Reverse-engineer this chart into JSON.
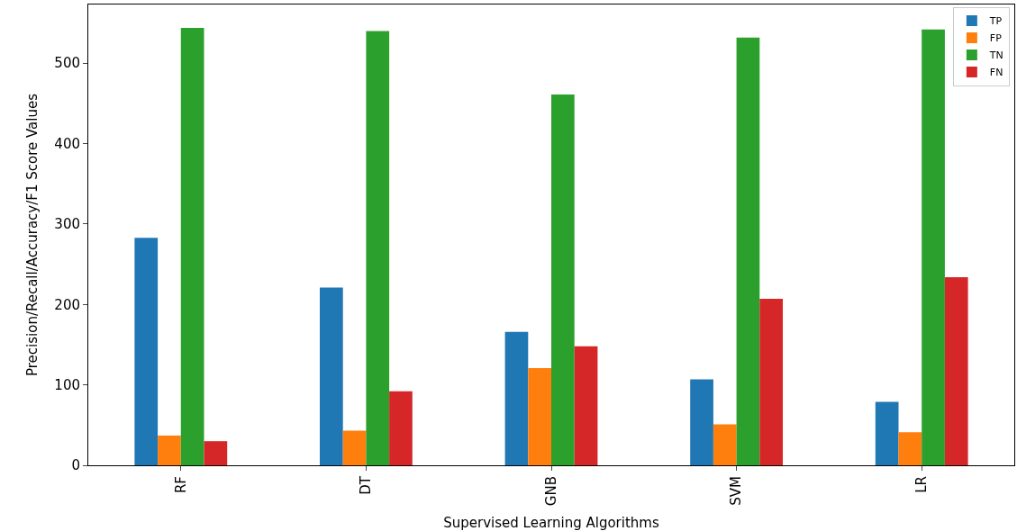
{
  "chart_data": {
    "type": "bar",
    "xlabel": "Supervised Learning Algorithms",
    "ylabel": "Precision/Recall/Accuracy/F1 Score Values",
    "categories": [
      "RF",
      "DT",
      "GNB",
      "SVM",
      "LR"
    ],
    "series": [
      {
        "name": "TP",
        "color": "#1f77b4",
        "values": [
          283,
          221,
          166,
          107,
          79
        ]
      },
      {
        "name": "FP",
        "color": "#ff7f0e",
        "values": [
          37,
          43,
          121,
          51,
          41
        ]
      },
      {
        "name": "TN",
        "color": "#2ca02c",
        "values": [
          544,
          540,
          461,
          532,
          542
        ]
      },
      {
        "name": "FN",
        "color": "#d62728",
        "values": [
          30,
          92,
          148,
          207,
          234
        ]
      }
    ],
    "ylim": [
      0,
      573
    ],
    "yticks": [
      0,
      100,
      200,
      300,
      400,
      500
    ],
    "legend": "top right"
  }
}
